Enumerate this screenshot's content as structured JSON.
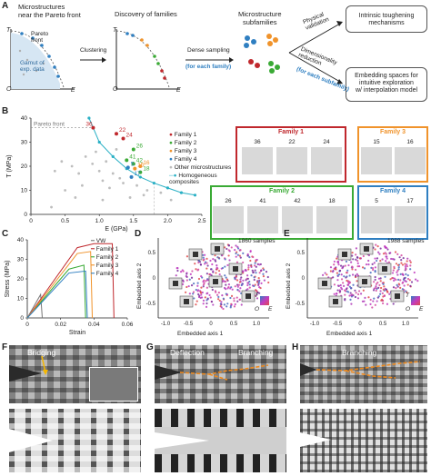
{
  "panels": {
    "a": {
      "label": "A",
      "step1_title": "Microstructures\nnear the Pareto front",
      "pareto_front_label": "Pareto\nfront",
      "gamut_label": "Gamut of\nexp. data",
      "axis_t": "T",
      "axis_e": "E",
      "axis_o": "O",
      "clustering_label": "Clustering",
      "step2_title": "Discovery of families",
      "dense_sampling_label": "Dense sampling",
      "per_family_label": "(for each family)",
      "step3_title": "Microstructure\nsubfamilies",
      "physical_validation_label": "Physical\nvalidation",
      "dim_reduction_label": "Dimensionality\nreduction",
      "per_subfamily_label": "(for each subfamily)",
      "box1_text": "Intrinsic toughening\nmechanisms",
      "box2_text": "Embedding spaces for\nintuitive exploration\nw/ interpolation model"
    },
    "b": {
      "label": "B",
      "ylabel": "T (MPa)",
      "xlabel": "E (GPa)",
      "pareto_label": "Pareto front",
      "legend": [
        "Family 1",
        "Family 2",
        "Family 3",
        "Family 4",
        "Other microstructures",
        "Homogeneous\ncomposites"
      ],
      "colors": {
        "family1": "#c0282d",
        "family2": "#3aaa35",
        "family3": "#f0932b",
        "family4": "#2f7fc1",
        "other": "#bdbdbd",
        "homog": "#2ab0c5"
      },
      "point_labels": [
        "36",
        "22",
        "24",
        "26",
        "41",
        "42",
        "5",
        "15",
        "16",
        "17",
        "18"
      ],
      "family_boxes": [
        {
          "title": "Family 1",
          "ids": [
            "36",
            "22",
            "24"
          ]
        },
        {
          "title": "Family 3",
          "ids": [
            "15",
            "16"
          ]
        },
        {
          "title": "Family 2",
          "ids": [
            "26",
            "41",
            "42",
            "18"
          ]
        },
        {
          "title": "Family 4",
          "ids": [
            "5",
            "17"
          ]
        }
      ]
    },
    "c": {
      "label": "C",
      "ylabel": "Stress (MPa)",
      "xlabel": "Strain",
      "legend": [
        "VW",
        "Family 1",
        "Family 2",
        "Family 3",
        "Family 4"
      ]
    },
    "d": {
      "label": "D",
      "samples": "1860 samples",
      "xlabel": "Embedded axis 1",
      "ylabel": "Embedded axis 2",
      "cbar_t": "T",
      "cbar_o": "O",
      "cbar_e": "E"
    },
    "e": {
      "label": "E",
      "samples": "1988 samples",
      "xlabel": "Embedded axis 1",
      "ylabel": "Embedded axis 2",
      "cbar_t": "T",
      "cbar_o": "O",
      "cbar_e": "E"
    },
    "f": {
      "label": "F",
      "caption": "Bridging"
    },
    "g": {
      "label": "G",
      "caption1": "Deflection",
      "caption2": "Branching"
    },
    "h": {
      "label": "H",
      "caption": "Branching"
    }
  },
  "chart_data": [
    {
      "type": "scatter",
      "xlabel": "E (GPa)",
      "ylabel": "T (MPa)",
      "xlim": [
        0,
        2.5
      ],
      "ylim": [
        0,
        40
      ],
      "xticks": [
        "0",
        "0.5",
        "1.0",
        "1.5",
        "2.0",
        "2.5"
      ],
      "yticks": [
        "0",
        "10",
        "20",
        "30",
        "40"
      ],
      "series": [
        {
          "name": "Family 1",
          "points": [
            [
              0.91,
              36
            ],
            [
              1.25,
              33.5
            ],
            [
              1.35,
              31.5
            ]
          ]
        },
        {
          "name": "Family 2",
          "points": [
            [
              1.5,
              27
            ],
            [
              1.4,
              22.5
            ],
            [
              1.5,
              21
            ],
            [
              1.6,
              17.5
            ]
          ]
        },
        {
          "name": "Family 3",
          "points": [
            [
              1.52,
              19
            ],
            [
              1.6,
              20
            ]
          ]
        },
        {
          "name": "Family 4",
          "points": [
            [
              1.42,
              19.5
            ],
            [
              1.47,
              15.5
            ]
          ]
        },
        {
          "name": "Homogeneous\ncomposites",
          "points": [
            [
              0.85,
              40
            ],
            [
              1.0,
              30
            ],
            [
              1.2,
              24
            ],
            [
              1.4,
              19
            ],
            [
              1.6,
              15.5
            ],
            [
              1.8,
              13
            ],
            [
              2.0,
              11
            ],
            [
              2.2,
              9
            ],
            [
              2.4,
              8
            ]
          ]
        },
        {
          "name": "Other microstructures",
          "points": [
            [
              0.6,
              20
            ],
            [
              0.7,
              17
            ],
            [
              0.8,
              24
            ],
            [
              0.9,
              21
            ],
            [
              1.0,
              18
            ],
            [
              1.1,
              22
            ],
            [
              1.05,
              14
            ],
            [
              1.2,
              17
            ],
            [
              1.3,
              15
            ],
            [
              0.5,
              10
            ],
            [
              0.75,
              12
            ],
            [
              1.15,
              11
            ],
            [
              1.35,
              13
            ],
            [
              1.55,
              12
            ],
            [
              1.7,
              10
            ],
            [
              0.35,
              18
            ],
            [
              0.45,
              22
            ],
            [
              0.95,
              26
            ],
            [
              1.25,
              27
            ],
            [
              1.65,
              8
            ],
            [
              1.9,
              9
            ],
            [
              0.3,
              3
            ],
            [
              0.65,
              7
            ],
            [
              1.05,
              6
            ],
            [
              1.45,
              7
            ],
            [
              2.05,
              6
            ]
          ]
        }
      ]
    },
    {
      "type": "line",
      "xlabel": "Strain",
      "ylabel": "Stress (MPa)",
      "xlim": [
        0,
        0.06
      ],
      "ylim": [
        0,
        40
      ],
      "xticks": [
        "0",
        "0.02",
        "0.04",
        "0.06"
      ],
      "yticks": [
        "0",
        "10",
        "20",
        "30",
        "40"
      ],
      "series": [
        {
          "name": "VW",
          "points": [
            [
              0,
              0
            ],
            [
              0.008,
              12
            ],
            [
              0.009,
              0
            ]
          ]
        },
        {
          "name": "Family 1",
          "points": [
            [
              0,
              0
            ],
            [
              0.03,
              36
            ],
            [
              0.04,
              38
            ],
            [
              0.051,
              38
            ],
            [
              0.052,
              0
            ]
          ]
        },
        {
          "name": "Family 2",
          "points": [
            [
              0,
              0
            ],
            [
              0.025,
              25
            ],
            [
              0.034,
              27
            ],
            [
              0.035,
              0
            ]
          ]
        },
        {
          "name": "Family 3",
          "points": [
            [
              0,
              0
            ],
            [
              0.03,
              33
            ],
            [
              0.038,
              34
            ],
            [
              0.039,
              0
            ]
          ]
        },
        {
          "name": "Family 4",
          "points": [
            [
              0,
              0
            ],
            [
              0.025,
              23
            ],
            [
              0.035,
              24
            ],
            [
              0.036,
              0
            ]
          ]
        }
      ]
    }
  ]
}
